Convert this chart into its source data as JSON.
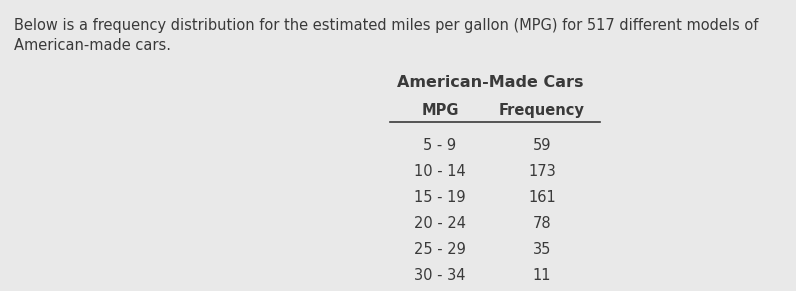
{
  "description_line1": "Below is a frequency distribution for the estimated miles per gallon (MPG) for 517 different models of",
  "description_line2": "American-made cars.",
  "table_title": "American-Made Cars",
  "col_headers": [
    "MPG",
    "Frequency"
  ],
  "rows": [
    [
      "5 - 9",
      "59"
    ],
    [
      "10 - 14",
      "173"
    ],
    [
      "15 - 19",
      "161"
    ],
    [
      "20 - 24",
      "78"
    ],
    [
      "25 - 29",
      "35"
    ],
    [
      "30 - 34",
      "11"
    ]
  ],
  "background_color": "#e9e9e9",
  "text_color": "#3a3a3a",
  "description_fontsize": 10.5,
  "title_fontsize": 11.5,
  "header_fontsize": 10.5,
  "data_fontsize": 10.5,
  "fig_width": 7.96,
  "fig_height": 2.91,
  "dpi": 100
}
